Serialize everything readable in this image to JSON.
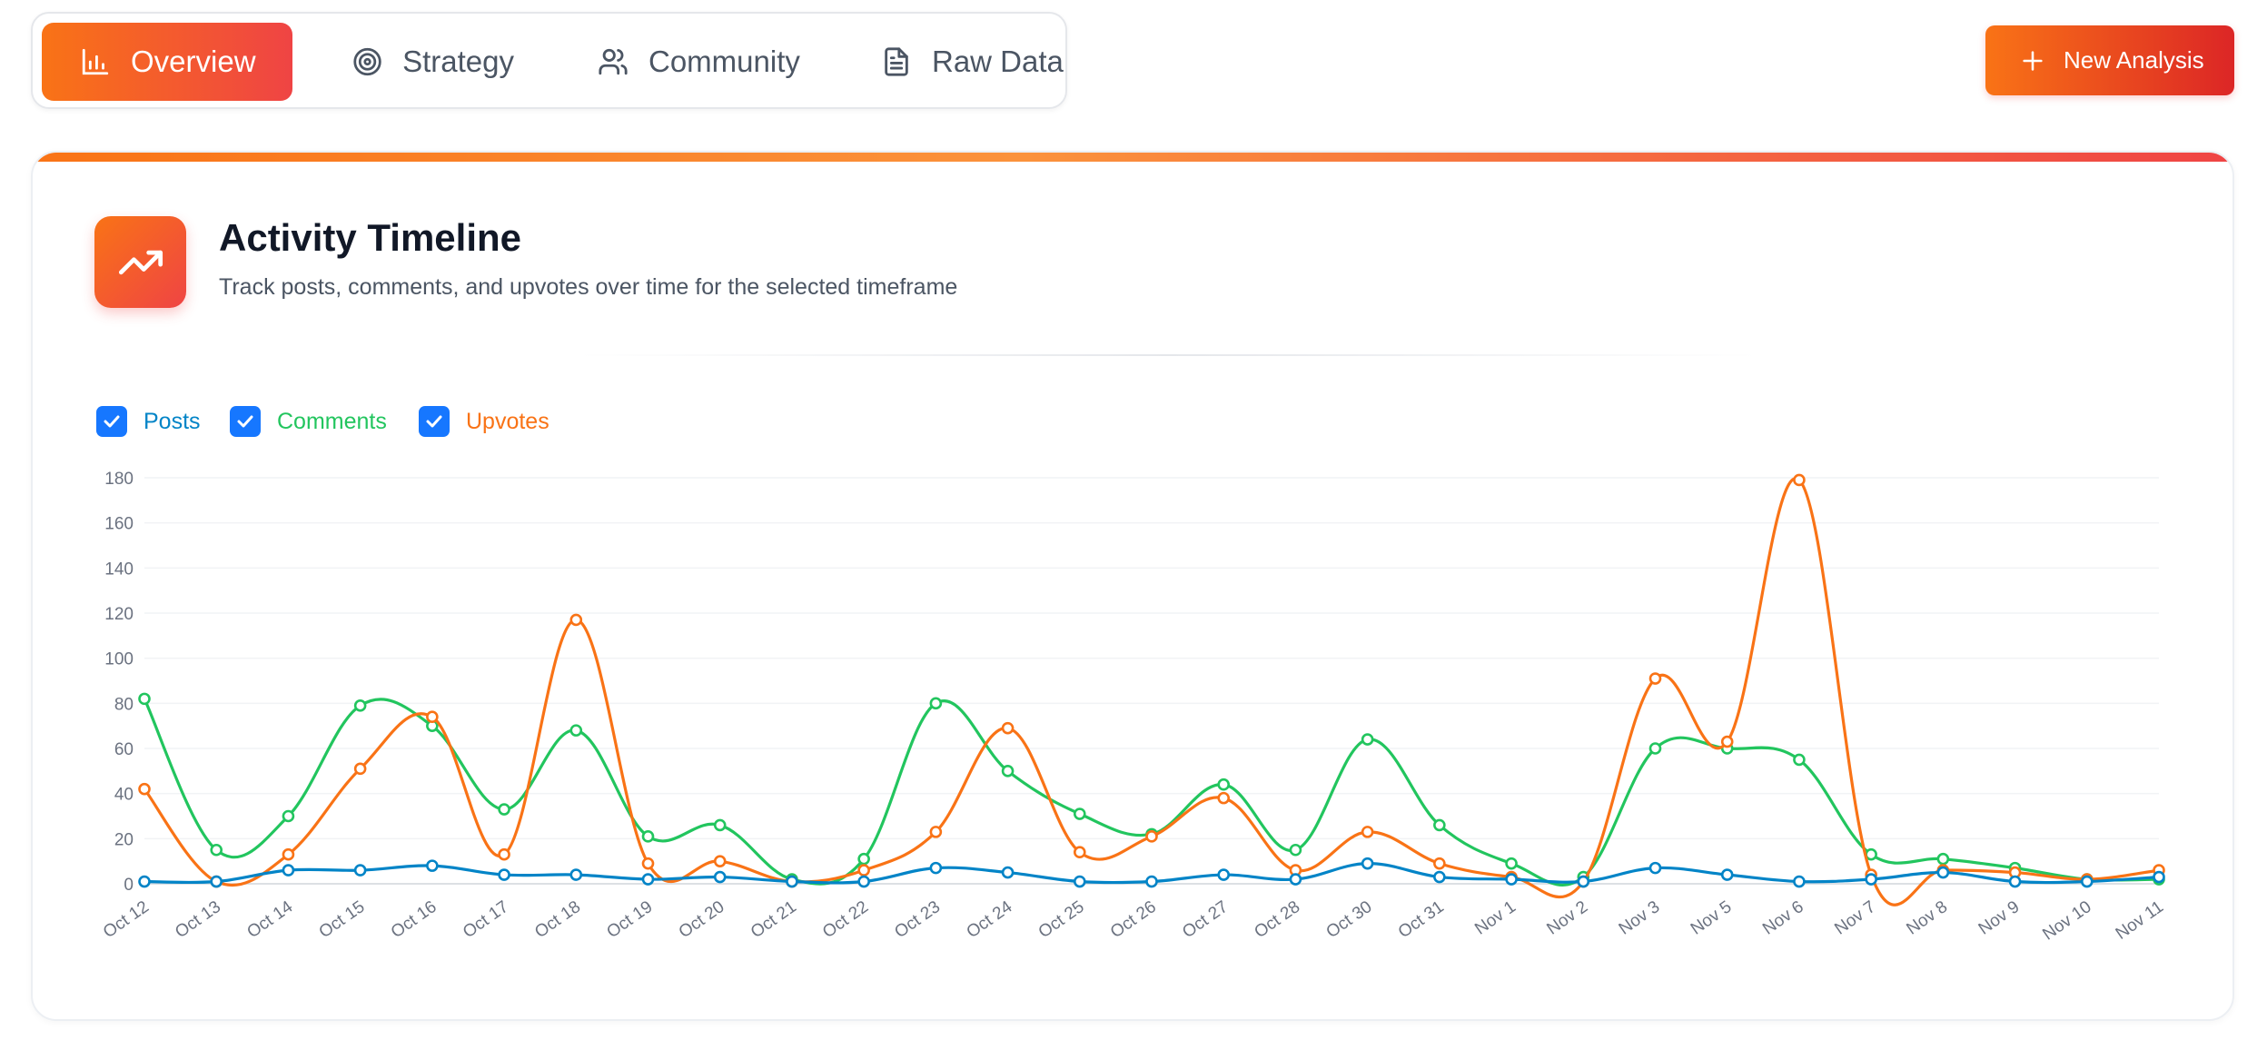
{
  "tabs": [
    {
      "label": "Overview",
      "icon": "bar-chart-icon",
      "active": true
    },
    {
      "label": "Strategy",
      "icon": "target-icon",
      "active": false
    },
    {
      "label": "Community",
      "icon": "users-icon",
      "active": false
    },
    {
      "label": "Raw Data",
      "icon": "document-icon",
      "active": false
    }
  ],
  "new_analysis": {
    "label": "New Analysis",
    "icon": "plus-icon"
  },
  "card": {
    "title": "Activity Timeline",
    "subtitle": "Track posts, comments, and upvotes over time for the selected timeframe",
    "icon": "trending-up-icon"
  },
  "legend": [
    {
      "label": "Posts",
      "checked": true,
      "color": "#0284c7"
    },
    {
      "label": "Comments",
      "checked": true,
      "color": "#22c55e"
    },
    {
      "label": "Upvotes",
      "checked": true,
      "color": "#f97316"
    }
  ],
  "colors": {
    "accent_start": "#f97316",
    "accent_end": "#ef4444",
    "checkbox": "#1677ff"
  },
  "chart_data": {
    "type": "line",
    "categories": [
      "Oct 12",
      "Oct 13",
      "Oct 14",
      "Oct 15",
      "Oct 16",
      "Oct 17",
      "Oct 18",
      "Oct 19",
      "Oct 20",
      "Oct 21",
      "Oct 22",
      "Oct 23",
      "Oct 24",
      "Oct 25",
      "Oct 26",
      "Oct 27",
      "Oct 28",
      "Oct 30",
      "Oct 31",
      "Nov 1",
      "Nov 2",
      "Nov 3",
      "Nov 5",
      "Nov 6",
      "Nov 7",
      "Nov 8",
      "Nov 9",
      "Nov 10",
      "Nov 11"
    ],
    "series": [
      {
        "name": "Posts",
        "color": "#0284c7",
        "values": [
          1,
          1,
          6,
          6,
          8,
          4,
          4,
          2,
          3,
          1,
          1,
          7,
          5,
          1,
          1,
          4,
          2,
          9,
          3,
          2,
          1,
          7,
          4,
          1,
          2,
          5,
          1,
          1,
          3
        ]
      },
      {
        "name": "Comments",
        "color": "#22c55e",
        "values": [
          82,
          15,
          30,
          79,
          70,
          33,
          68,
          21,
          26,
          2,
          11,
          80,
          50,
          31,
          22,
          44,
          15,
          64,
          26,
          9,
          3,
          60,
          60,
          55,
          13,
          11,
          7,
          2,
          2
        ]
      },
      {
        "name": "Upvotes",
        "color": "#f97316",
        "values": [
          42,
          1,
          13,
          51,
          74,
          13,
          117,
          9,
          10,
          1,
          6,
          23,
          69,
          14,
          21,
          38,
          6,
          23,
          9,
          3,
          1,
          91,
          63,
          179,
          4,
          6,
          5,
          2,
          6
        ]
      }
    ],
    "ylim": [
      0,
      180
    ],
    "yticks": [
      0,
      20,
      40,
      60,
      80,
      100,
      120,
      140,
      160,
      180
    ],
    "grid": true
  }
}
